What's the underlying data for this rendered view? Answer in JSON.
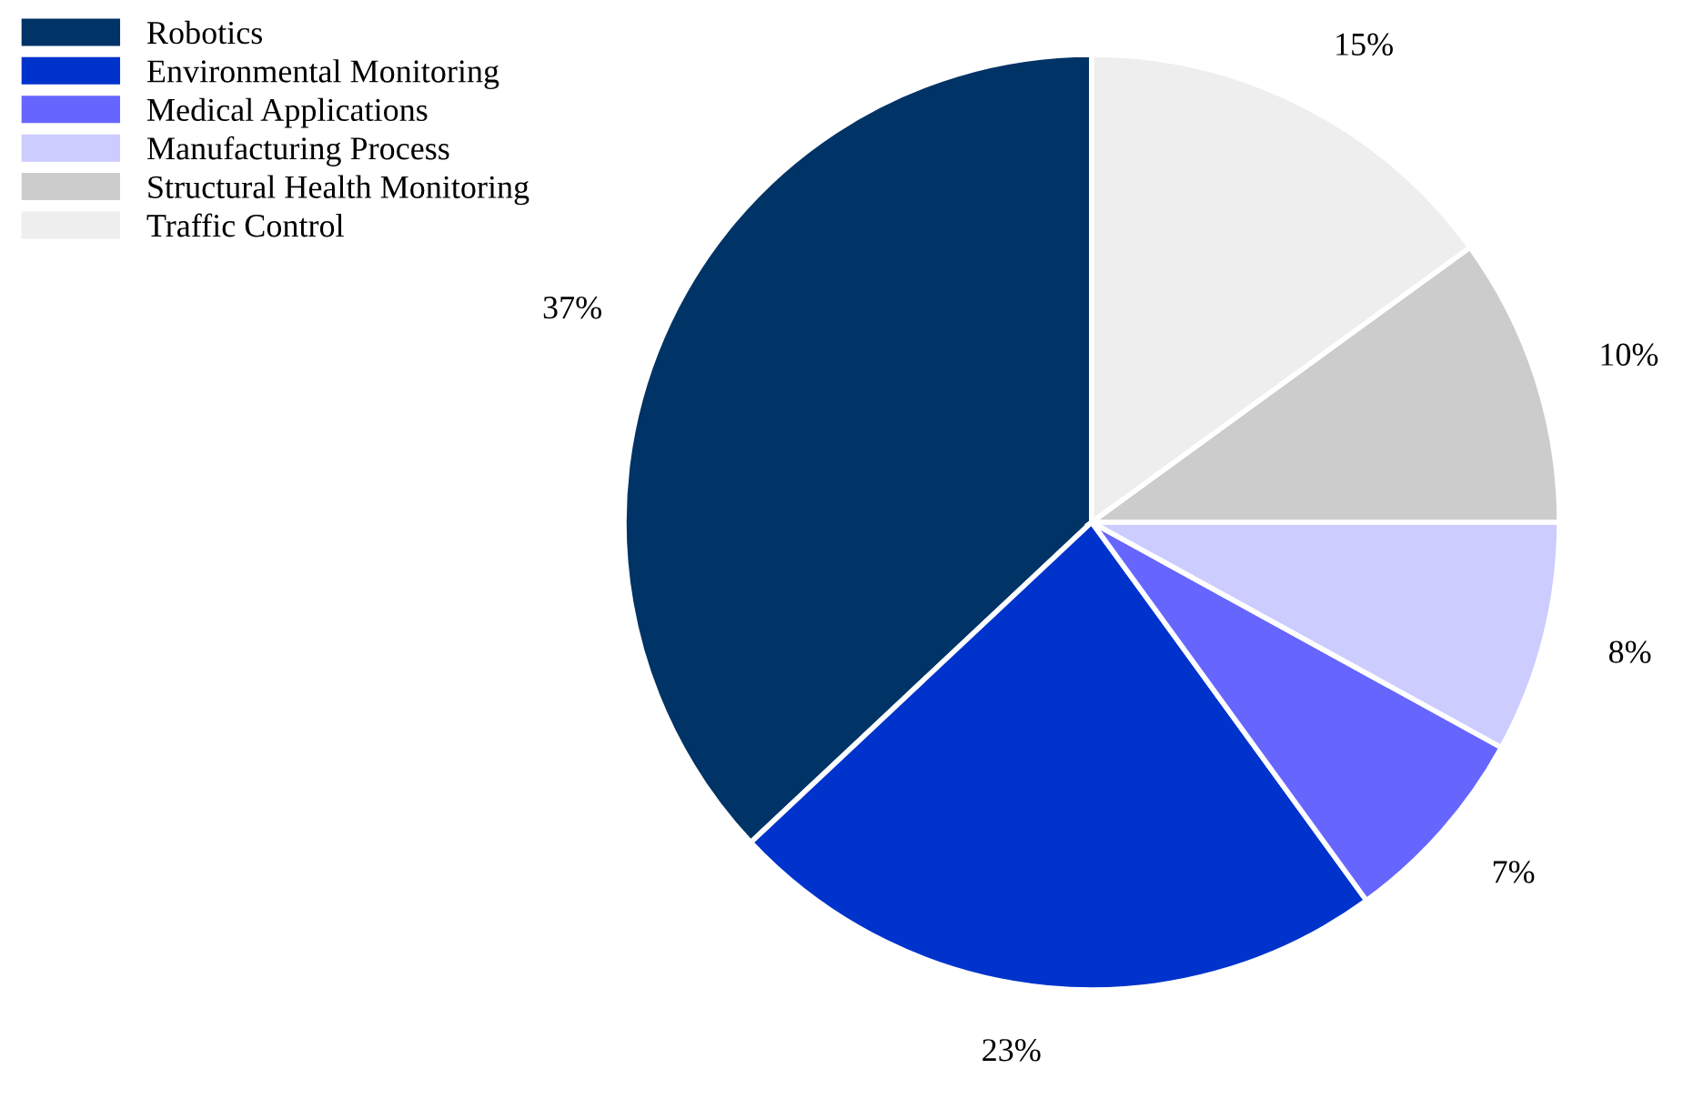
{
  "chart_data": {
    "type": "pie",
    "categories": [
      "Robotics",
      "Environmental Monitoring",
      "Medical Applications",
      "Manufacturing Process",
      "Structural Health Monitoring",
      "Traffic Control"
    ],
    "values": [
      37,
      23,
      7,
      8,
      10,
      15
    ],
    "colors": [
      "#003366",
      "#0033cc",
      "#6666ff",
      "#ccccff",
      "#cccccc",
      "#eeeeee"
    ],
    "value_labels": [
      "37%",
      "23%",
      "7%",
      "8%",
      "10%",
      "15%"
    ],
    "legend": "top left"
  }
}
